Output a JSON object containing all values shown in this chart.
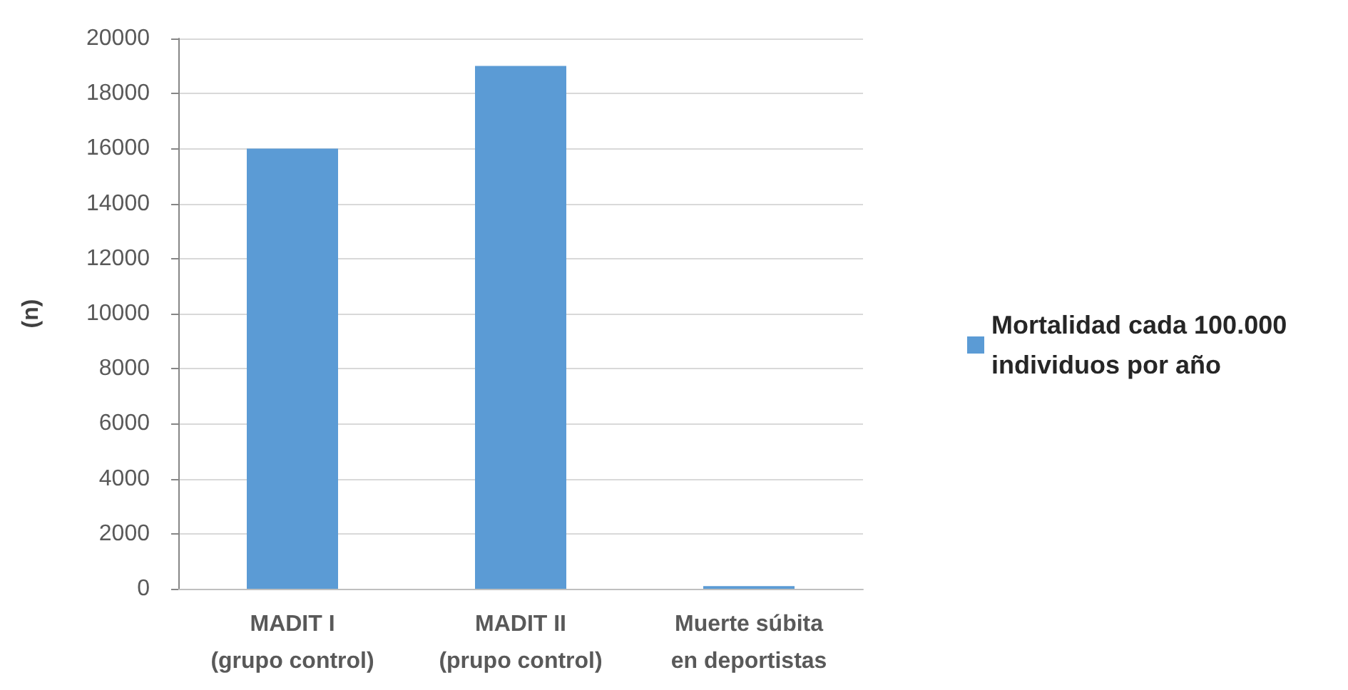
{
  "chart_data": {
    "type": "bar",
    "ylabel": "(n)",
    "categories": [
      "MADIT I\n(grupo control)",
      "MADIT II\n(prupo control)",
      "Muerte súbita\nen deportistas"
    ],
    "series": [
      {
        "name": "Mortalidad cada 100.000 individuos por año",
        "color": "#5b9bd5",
        "values": [
          16000,
          19000,
          100
        ]
      }
    ],
    "ylim": [
      0,
      20000
    ],
    "yticks": [
      0,
      2000,
      4000,
      6000,
      8000,
      10000,
      12000,
      14000,
      16000,
      18000,
      20000
    ],
    "grid": "y",
    "legend": "right"
  }
}
